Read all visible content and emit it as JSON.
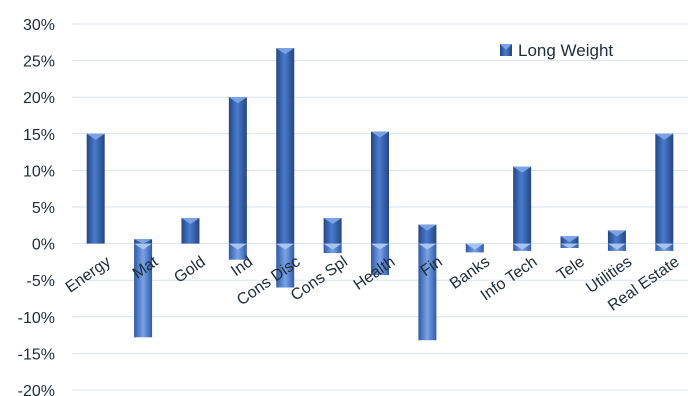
{
  "chart_data": {
    "type": "bar",
    "categories": [
      "Energy",
      "Mat",
      "Gold",
      "Ind",
      "Cons Disc",
      "Cons Spl",
      "Health",
      "Fin",
      "Banks",
      "Info Tech",
      "Tele",
      "Utilities",
      "Real Estate"
    ],
    "series": [
      {
        "name": "Long Weight",
        "values": [
          15.0,
          0.6,
          3.5,
          20.0,
          26.7,
          3.5,
          15.3,
          2.6,
          -0.5,
          10.5,
          1.0,
          1.8,
          15.0
        ]
      },
      {
        "values": [
          0,
          -12.8,
          0,
          -2.2,
          -6.0,
          -1.3,
          -4.3,
          -13.2,
          -1.2,
          -1.0,
          -0.6,
          -1.0,
          -1.0
        ]
      }
    ],
    "yticks": [
      "30%",
      "25%",
      "20%",
      "15%",
      "10%",
      "5%",
      "0%",
      "-5%",
      "-10%",
      "-15%",
      "-20%"
    ],
    "ylim": [
      -20,
      30
    ],
    "grid": true,
    "legend": {
      "position": "top-right",
      "entries": [
        "Long Weight"
      ]
    },
    "colors": {
      "bar": "#3f6bbf",
      "bar_light": "#6f9ae0",
      "bar_dark": "#24467f",
      "grid": "#d9e2f0",
      "text": "#1f2d3a"
    }
  }
}
